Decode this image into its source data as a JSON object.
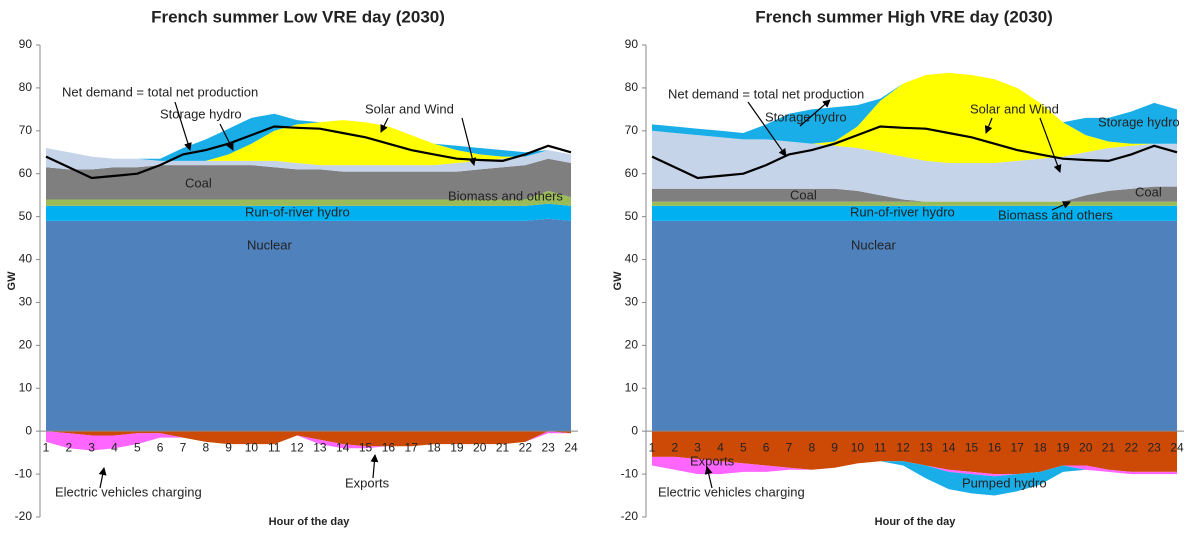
{
  "chart_data": [
    {
      "type": "area",
      "title": "French summer Low VRE day (2030)",
      "ylabel": "GW",
      "xlabel": "Hour of the day",
      "categories": [
        "1",
        "2",
        "3",
        "4",
        "5",
        "6",
        "7",
        "8",
        "9",
        "10",
        "11",
        "12",
        "13",
        "14",
        "15",
        "16",
        "17",
        "18",
        "19",
        "20",
        "21",
        "22",
        "23",
        "24"
      ],
      "ylim": [
        -20,
        90
      ],
      "yticks": [
        -20,
        -10,
        0,
        10,
        20,
        30,
        40,
        50,
        60,
        70,
        80,
        90
      ],
      "series": [
        {
          "name": "Nuclear",
          "color": "#4f81bd",
          "values": [
            49,
            49,
            49,
            49,
            49,
            49,
            49,
            49,
            49,
            49,
            49,
            49,
            49,
            49,
            49,
            49,
            49,
            49,
            49,
            49,
            49,
            49,
            49.5,
            49
          ]
        },
        {
          "name": "Run-of-river hydro",
          "color": "#00b0f0",
          "values": [
            3.5,
            3.5,
            3.5,
            3.5,
            3.5,
            3.5,
            3.5,
            3.5,
            3.5,
            3.5,
            3.5,
            3.5,
            3.5,
            3.5,
            3.5,
            3.5,
            3.5,
            3.5,
            3.5,
            3.5,
            3.5,
            3.5,
            3.5,
            3.5
          ]
        },
        {
          "name": "Biomass and others",
          "color": "#9bbb59",
          "values": [
            1.5,
            1.5,
            1.5,
            1.5,
            1.5,
            1.5,
            1.5,
            1.5,
            1.5,
            1.5,
            1.5,
            1.5,
            1.5,
            1.5,
            1.5,
            1.5,
            1.5,
            1.5,
            1.5,
            1.5,
            1.5,
            1.5,
            3,
            2
          ]
        },
        {
          "name": "Coal",
          "color": "#7f7f7f",
          "values": [
            7.5,
            7,
            7,
            7.5,
            7.5,
            8,
            8,
            8,
            8,
            8,
            7.5,
            7,
            7,
            6.5,
            6.5,
            6.5,
            6.5,
            6.5,
            6.5,
            7,
            7.5,
            8,
            7.5,
            8
          ]
        },
        {
          "color": "#c6d4ea",
          "values": [
            4.5,
            4,
            3,
            2,
            2,
            1,
            1,
            1,
            1,
            1,
            1.5,
            1.5,
            1,
            1.5,
            1.5,
            1.5,
            1.5,
            1.5,
            2,
            2,
            2,
            2,
            2,
            2
          ]
        },
        {
          "name": "Solar and Wind",
          "color": "#ffff00",
          "values": [
            0,
            0,
            0,
            0,
            0,
            0,
            0,
            0,
            1.5,
            4,
            7,
            9,
            10,
            10.5,
            10,
            9,
            7,
            5,
            3,
            1.5,
            0.5,
            0,
            0,
            0
          ]
        },
        {
          "name": "Storage hydro",
          "color": "#1aaee8",
          "values": [
            0,
            0,
            0,
            0,
            0,
            0.5,
            3,
            5,
            6,
            6,
            4,
            1,
            0,
            0,
            0,
            0,
            0,
            0,
            1,
            1.5,
            1.5,
            1,
            0,
            0
          ]
        },
        {
          "name": "Exports",
          "color": "#cc4a06",
          "values": [
            0,
            -0.5,
            -1,
            -1,
            -0.5,
            -0.5,
            -1.5,
            -2.5,
            -3,
            -3,
            -3,
            -1,
            -2,
            -3,
            -3.5,
            -3.5,
            -3.5,
            -3,
            -3,
            -3,
            -3,
            -2.5,
            0,
            -0.5
          ]
        },
        {
          "name": "Electric vehicles charging",
          "color": "#ff66ff",
          "values": [
            -2.5,
            -3.5,
            -3.5,
            -3,
            -2.5,
            -1,
            0,
            0,
            0,
            0,
            0,
            0,
            -1,
            -1,
            -0.5,
            0,
            0,
            0,
            0,
            0,
            0,
            0,
            -0.5,
            0
          ]
        }
      ],
      "line": {
        "name": "Net demand = total net production",
        "color": "#000000",
        "values": [
          64,
          61.5,
          59,
          59.5,
          60,
          62,
          64.5,
          65.5,
          67,
          69,
          71,
          70.7,
          70.5,
          69.5,
          68.5,
          67,
          65.5,
          64.5,
          63.5,
          63.2,
          63,
          64.5,
          66.5,
          65
        ]
      }
    },
    {
      "type": "area",
      "title": "French summer High VRE day (2030)",
      "ylabel": "GW",
      "xlabel": "Hour of the day",
      "categories": [
        "1",
        "2",
        "3",
        "4",
        "5",
        "6",
        "7",
        "8",
        "9",
        "10",
        "11",
        "12",
        "13",
        "14",
        "15",
        "16",
        "17",
        "18",
        "19",
        "20",
        "21",
        "22",
        "23",
        "24"
      ],
      "ylim": [
        -20,
        90
      ],
      "yticks": [
        -20,
        -10,
        0,
        10,
        20,
        30,
        40,
        50,
        60,
        70,
        80,
        90
      ],
      "series": [
        {
          "name": "Nuclear",
          "color": "#4f81bd",
          "values": [
            49,
            49,
            49,
            49,
            49,
            49,
            49,
            49,
            49,
            49,
            49,
            49,
            49,
            49,
            49,
            49,
            49,
            49,
            49,
            49,
            49,
            49,
            49,
            49
          ]
        },
        {
          "name": "Run-of-river hydro",
          "color": "#00b0f0",
          "values": [
            3.5,
            3.5,
            3.5,
            3.5,
            3.5,
            3.5,
            3.5,
            3.5,
            3.5,
            3.5,
            3.5,
            3.5,
            3.5,
            3.5,
            3.5,
            3.5,
            3.5,
            3.5,
            3.5,
            3.5,
            3.5,
            3.5,
            3.5,
            3.5
          ]
        },
        {
          "name": "Biomass and others",
          "color": "#9bbb59",
          "values": [
            1,
            1,
            1,
            1,
            1,
            1,
            1,
            1,
            1,
            1,
            1,
            1,
            1,
            1,
            1,
            1,
            1,
            1,
            1,
            1,
            1,
            1,
            1,
            1
          ]
        },
        {
          "name": "Coal",
          "color": "#7f7f7f",
          "values": [
            3,
            3,
            3,
            3,
            3,
            3,
            3,
            3,
            3,
            2.5,
            1.5,
            0.5,
            0,
            0,
            0,
            0,
            0,
            0,
            0,
            1.5,
            2.5,
            3,
            3.5,
            3.5
          ]
        },
        {
          "color": "#c6d4ea",
          "values": [
            13.5,
            13,
            12.5,
            12,
            11.5,
            11.5,
            11,
            10.5,
            10,
            10,
            10,
            10,
            9.5,
            9,
            9,
            9,
            9.5,
            10,
            10.5,
            10,
            10,
            10,
            10,
            10
          ]
        },
        {
          "name": "Solar and Wind",
          "color": "#ffff00",
          "values": [
            0,
            0,
            0,
            0,
            0,
            0,
            0,
            0,
            1,
            5,
            12,
            17,
            20,
            21,
            20.5,
            19.5,
            17,
            13,
            8,
            4,
            1.5,
            0.5,
            0,
            0
          ]
        },
        {
          "name": "Storage hydro",
          "color": "#1aaee8",
          "values": [
            1.5,
            1.5,
            1.5,
            1.5,
            1.5,
            3.5,
            6.5,
            8,
            8,
            5,
            0.5,
            0,
            0,
            0,
            0,
            0,
            0,
            0,
            0,
            4,
            5.5,
            7.5,
            9.5,
            8
          ]
        },
        {
          "name": "Exports",
          "color": "#cc4a06",
          "values": [
            -6,
            -6,
            -6.5,
            -7,
            -7.5,
            -8,
            -8.5,
            -9,
            -8.5,
            -7.5,
            -7,
            -7,
            -8,
            -9,
            -9.5,
            -10,
            -10,
            -9.5,
            -8,
            -8,
            -9,
            -9.5,
            -9.5,
            -9.5
          ]
        },
        {
          "name": "Electric vehicles charging",
          "color": "#ff66ff",
          "values": [
            -2,
            -3,
            -3.5,
            -3,
            -2,
            -1.5,
            -0.5,
            0,
            0,
            0,
            0,
            0,
            0,
            -0.5,
            -0.5,
            -0.5,
            0,
            0,
            0,
            -1,
            -0.5,
            -0.5,
            -0.5,
            -0.5
          ]
        },
        {
          "name": "Pumped hydro",
          "color": "#1aaee8",
          "values": [
            0,
            0,
            0,
            0,
            0,
            0,
            0,
            0,
            0,
            0,
            0,
            -1,
            -3,
            -4,
            -4.5,
            -4.5,
            -4,
            -3,
            -1.5,
            0,
            0,
            0,
            0,
            0
          ]
        }
      ],
      "line": {
        "name": "Net demand = total net production",
        "color": "#000000",
        "values": [
          64,
          61.5,
          59,
          59.5,
          60,
          62,
          64.5,
          65.5,
          67,
          69,
          71,
          70.7,
          70.5,
          69.5,
          68.5,
          67,
          65.5,
          64.5,
          63.5,
          63.2,
          63,
          64.5,
          66.5,
          65
        ]
      }
    }
  ]
}
